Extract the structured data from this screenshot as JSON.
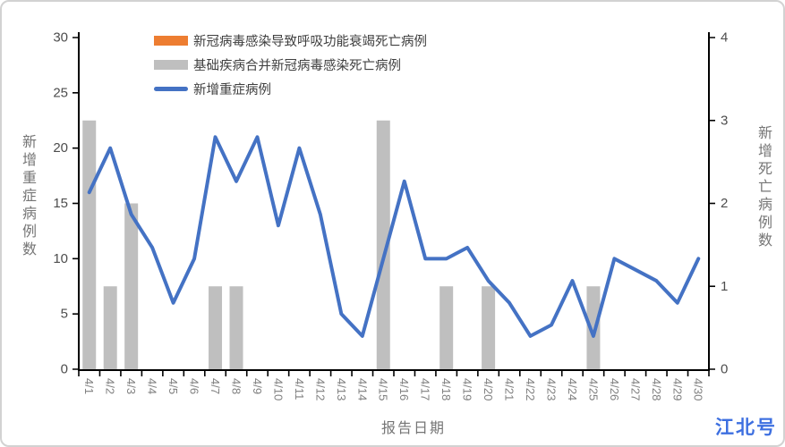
{
  "legend": {
    "items": [
      {
        "label": "新冠病毒感染导致呼吸功能衰竭死亡病例",
        "color": "#ED7D31",
        "type": "bar"
      },
      {
        "label": "基础疾病合并新冠病毒感染死亡病例",
        "color": "#BFBFBF",
        "type": "bar"
      },
      {
        "label": "新增重症病例",
        "color": "#4472C4",
        "type": "line"
      }
    ]
  },
  "axes": {
    "left": {
      "title": "新增重症病例数",
      "ticks": [
        0,
        5,
        10,
        15,
        20,
        25,
        30
      ],
      "max": 30
    },
    "right": {
      "title": "新增死亡病例数",
      "ticks": [
        0,
        1,
        2,
        3,
        4
      ],
      "max": 4
    },
    "x": {
      "title": "报告日期"
    }
  },
  "watermark": "江北号",
  "chart_data": {
    "type": "combo",
    "categories": [
      "4/1",
      "4/2",
      "4/3",
      "4/4",
      "4/5",
      "4/6",
      "4/7",
      "4/8",
      "4/9",
      "4/10",
      "4/11",
      "4/12",
      "4/13",
      "4/14",
      "4/15",
      "4/16",
      "4/17",
      "4/18",
      "4/19",
      "4/20",
      "4/21",
      "4/22",
      "4/23",
      "4/24",
      "4/25",
      "4/26",
      "4/27",
      "4/28",
      "4/29",
      "4/30"
    ],
    "series": [
      {
        "name": "新冠病毒感染导致呼吸功能衰竭死亡病例",
        "type": "bar",
        "axis": "right",
        "color": "#ED7D31",
        "values": [
          0,
          0,
          0,
          0,
          0,
          0,
          0,
          0,
          0,
          0,
          0,
          0,
          0,
          0,
          0,
          0,
          0,
          0,
          0,
          0,
          0,
          0,
          0,
          0,
          0,
          0,
          0,
          0,
          0,
          0
        ]
      },
      {
        "name": "基础疾病合并新冠病毒感染死亡病例",
        "type": "bar",
        "axis": "right",
        "color": "#BFBFBF",
        "values": [
          3,
          1,
          2,
          0,
          0,
          0,
          1,
          1,
          0,
          0,
          0,
          0,
          0,
          0,
          3,
          0,
          0,
          1,
          0,
          1,
          0,
          0,
          0,
          0,
          1,
          0,
          0,
          0,
          0,
          0
        ]
      },
      {
        "name": "新增重症病例",
        "type": "line",
        "axis": "left",
        "color": "#4472C4",
        "values": [
          16,
          20,
          14,
          11,
          6,
          10,
          21,
          17,
          21,
          13,
          20,
          14,
          5,
          3,
          10,
          17,
          10,
          10,
          11,
          8,
          6,
          3,
          4,
          8,
          3,
          10,
          9,
          8,
          6,
          10
        ]
      }
    ],
    "xlabel": "报告日期",
    "ylabel_left": "新增重症病例数",
    "ylabel_right": "新增死亡病例数",
    "left_ylim": [
      0,
      30
    ],
    "right_ylim": [
      0,
      4
    ],
    "grid": false,
    "legend_position": "top-inside-left"
  },
  "style": {
    "axis_color": "#000000",
    "tick_label_color": "#4d4d4d",
    "date_label_color": "#7f7f7f"
  }
}
